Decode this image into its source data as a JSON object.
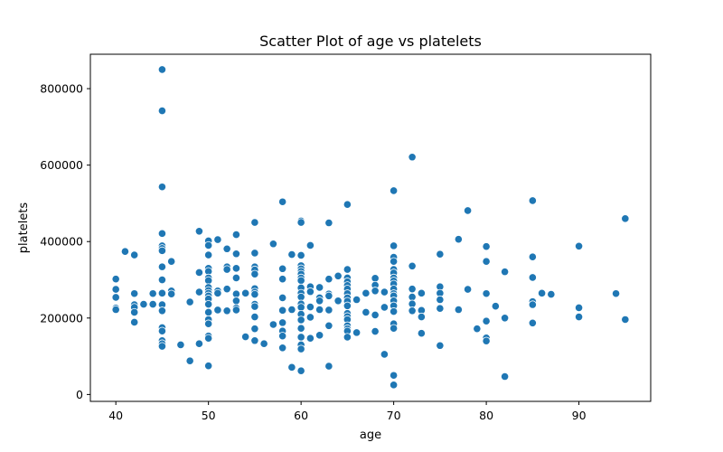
{
  "chart_data": {
    "type": "scatter",
    "title": "Scatter Plot of age vs platelets",
    "xlabel": "age",
    "ylabel": "platelets",
    "xlim": [
      37.25,
      97.75
    ],
    "ylim": [
      -18000,
      890000
    ],
    "xticks": [
      40,
      50,
      60,
      70,
      80,
      90
    ],
    "yticks": [
      0,
      200000,
      400000,
      600000,
      800000
    ],
    "grid": false,
    "legend": "none",
    "color": "#1f77b4",
    "points": [
      [
        40,
        302000
      ],
      [
        40,
        275000
      ],
      [
        40,
        254000
      ],
      [
        40,
        226000
      ],
      [
        40,
        222000
      ],
      [
        41,
        374000
      ],
      [
        42,
        365000
      ],
      [
        42,
        264000
      ],
      [
        42,
        235000
      ],
      [
        42,
        228000
      ],
      [
        42,
        215000
      ],
      [
        42,
        189000
      ],
      [
        43,
        236000
      ],
      [
        44,
        264000
      ],
      [
        44,
        236000
      ],
      [
        45,
        850000
      ],
      [
        45,
        742000
      ],
      [
        45,
        543000
      ],
      [
        45,
        421000
      ],
      [
        45,
        389000
      ],
      [
        45,
        382000
      ],
      [
        45,
        376000
      ],
      [
        45,
        334000
      ],
      [
        45,
        300000
      ],
      [
        45,
        265000
      ],
      [
        45,
        235000
      ],
      [
        45,
        219000
      ],
      [
        45,
        175000
      ],
      [
        45,
        166000
      ],
      [
        45,
        141000
      ],
      [
        45,
        133000
      ],
      [
        45,
        126000
      ],
      [
        46,
        348000
      ],
      [
        46,
        271000
      ],
      [
        46,
        263000
      ],
      [
        47,
        130000
      ],
      [
        48,
        242000
      ],
      [
        48,
        88000
      ],
      [
        49,
        427000
      ],
      [
        49,
        319000
      ],
      [
        49,
        268000
      ],
      [
        49,
        133000
      ],
      [
        50,
        402000
      ],
      [
        50,
        390000
      ],
      [
        50,
        365000
      ],
      [
        50,
        330000
      ],
      [
        50,
        322000
      ],
      [
        50,
        305000
      ],
      [
        50,
        298000
      ],
      [
        50,
        280000
      ],
      [
        50,
        272000
      ],
      [
        50,
        265000
      ],
      [
        50,
        258000
      ],
      [
        50,
        250000
      ],
      [
        50,
        236000
      ],
      [
        50,
        215000
      ],
      [
        50,
        196000
      ],
      [
        50,
        185000
      ],
      [
        50,
        153000
      ],
      [
        50,
        147000
      ],
      [
        50,
        75000
      ],
      [
        51,
        405000
      ],
      [
        51,
        271000
      ],
      [
        51,
        265000
      ],
      [
        51,
        221000
      ],
      [
        52,
        381000
      ],
      [
        52,
        334000
      ],
      [
        52,
        327000
      ],
      [
        52,
        276000
      ],
      [
        52,
        219000
      ],
      [
        53,
        418000
      ],
      [
        53,
        368000
      ],
      [
        53,
        330000
      ],
      [
        53,
        305000
      ],
      [
        53,
        263000
      ],
      [
        53,
        245000
      ],
      [
        53,
        226000
      ],
      [
        53,
        221000
      ],
      [
        54,
        265000
      ],
      [
        54,
        151000
      ],
      [
        55,
        450000
      ],
      [
        55,
        370000
      ],
      [
        55,
        334000
      ],
      [
        55,
        326000
      ],
      [
        55,
        315000
      ],
      [
        55,
        277000
      ],
      [
        55,
        268000
      ],
      [
        55,
        262000
      ],
      [
        55,
        236000
      ],
      [
        55,
        230000
      ],
      [
        55,
        203000
      ],
      [
        55,
        172000
      ],
      [
        55,
        141000
      ],
      [
        56,
        133000
      ],
      [
        57,
        394000
      ],
      [
        57,
        183000
      ],
      [
        58,
        504000
      ],
      [
        58,
        329000
      ],
      [
        58,
        302000
      ],
      [
        58,
        253000
      ],
      [
        58,
        220000
      ],
      [
        58,
        188000
      ],
      [
        58,
        166000
      ],
      [
        58,
        153000
      ],
      [
        58,
        122000
      ],
      [
        59,
        366000
      ],
      [
        59,
        222000
      ],
      [
        59,
        71000
      ],
      [
        60,
        454000
      ],
      [
        60,
        450000
      ],
      [
        60,
        364000
      ],
      [
        60,
        337000
      ],
      [
        60,
        329000
      ],
      [
        60,
        322000
      ],
      [
        60,
        315000
      ],
      [
        60,
        305000
      ],
      [
        60,
        298000
      ],
      [
        60,
        279000
      ],
      [
        60,
        265000
      ],
      [
        60,
        255000
      ],
      [
        60,
        237000
      ],
      [
        60,
        228000
      ],
      [
        60,
        210000
      ],
      [
        60,
        195000
      ],
      [
        60,
        173000
      ],
      [
        60,
        150000
      ],
      [
        60,
        130000
      ],
      [
        60,
        119000
      ],
      [
        60,
        62000
      ],
      [
        61,
        390000
      ],
      [
        61,
        282000
      ],
      [
        61,
        269000
      ],
      [
        61,
        229000
      ],
      [
        61,
        202000
      ],
      [
        61,
        147000
      ],
      [
        62,
        280000
      ],
      [
        62,
        253000
      ],
      [
        62,
        245000
      ],
      [
        62,
        222000
      ],
      [
        62,
        155000
      ],
      [
        63,
        449000
      ],
      [
        63,
        302000
      ],
      [
        63,
        263000
      ],
      [
        63,
        258000
      ],
      [
        63,
        221000
      ],
      [
        63,
        180000
      ],
      [
        63,
        74000
      ],
      [
        64,
        310000
      ],
      [
        64,
        245000
      ],
      [
        65,
        497000
      ],
      [
        65,
        327000
      ],
      [
        65,
        305000
      ],
      [
        65,
        295000
      ],
      [
        65,
        285000
      ],
      [
        65,
        276000
      ],
      [
        65,
        264000
      ],
      [
        65,
        253000
      ],
      [
        65,
        244000
      ],
      [
        65,
        232000
      ],
      [
        65,
        212000
      ],
      [
        65,
        204000
      ],
      [
        65,
        196000
      ],
      [
        65,
        180000
      ],
      [
        65,
        172000
      ],
      [
        65,
        166000
      ],
      [
        65,
        150000
      ],
      [
        66,
        248000
      ],
      [
        66,
        162000
      ],
      [
        67,
        265000
      ],
      [
        67,
        215000
      ],
      [
        68,
        304000
      ],
      [
        68,
        286000
      ],
      [
        68,
        271000
      ],
      [
        68,
        208000
      ],
      [
        68,
        165000
      ],
      [
        69,
        268000
      ],
      [
        69,
        228000
      ],
      [
        69,
        105000
      ],
      [
        70,
        533000
      ],
      [
        70,
        389000
      ],
      [
        70,
        359000
      ],
      [
        70,
        348000
      ],
      [
        70,
        327000
      ],
      [
        70,
        318000
      ],
      [
        70,
        305000
      ],
      [
        70,
        297000
      ],
      [
        70,
        289000
      ],
      [
        70,
        276000
      ],
      [
        70,
        264000
      ],
      [
        70,
        258000
      ],
      [
        70,
        245000
      ],
      [
        70,
        232000
      ],
      [
        70,
        217000
      ],
      [
        70,
        185000
      ],
      [
        70,
        173000
      ],
      [
        70,
        50000
      ],
      [
        70,
        25000
      ],
      [
        72,
        621000
      ],
      [
        72,
        336000
      ],
      [
        72,
        276000
      ],
      [
        72,
        255000
      ],
      [
        72,
        237000
      ],
      [
        72,
        219000
      ],
      [
        73,
        265000
      ],
      [
        73,
        220000
      ],
      [
        73,
        203000
      ],
      [
        73,
        160000
      ],
      [
        75,
        367000
      ],
      [
        75,
        282000
      ],
      [
        75,
        265000
      ],
      [
        75,
        248000
      ],
      [
        75,
        225000
      ],
      [
        75,
        128000
      ],
      [
        77,
        406000
      ],
      [
        77,
        222000
      ],
      [
        78,
        481000
      ],
      [
        78,
        275000
      ],
      [
        79,
        172000
      ],
      [
        80,
        387000
      ],
      [
        80,
        348000
      ],
      [
        80,
        264000
      ],
      [
        80,
        192000
      ],
      [
        80,
        148000
      ],
      [
        80,
        140000
      ],
      [
        81,
        231000
      ],
      [
        82,
        321000
      ],
      [
        82,
        200000
      ],
      [
        82,
        47000
      ],
      [
        85,
        507000
      ],
      [
        85,
        360000
      ],
      [
        85,
        306000
      ],
      [
        85,
        243000
      ],
      [
        85,
        235000
      ],
      [
        85,
        187000
      ],
      [
        86,
        265000
      ],
      [
        87,
        262000
      ],
      [
        90,
        388000
      ],
      [
        90,
        227000
      ],
      [
        90,
        203000
      ],
      [
        94,
        264000
      ],
      [
        95,
        460000
      ],
      [
        95,
        196000
      ]
    ]
  }
}
